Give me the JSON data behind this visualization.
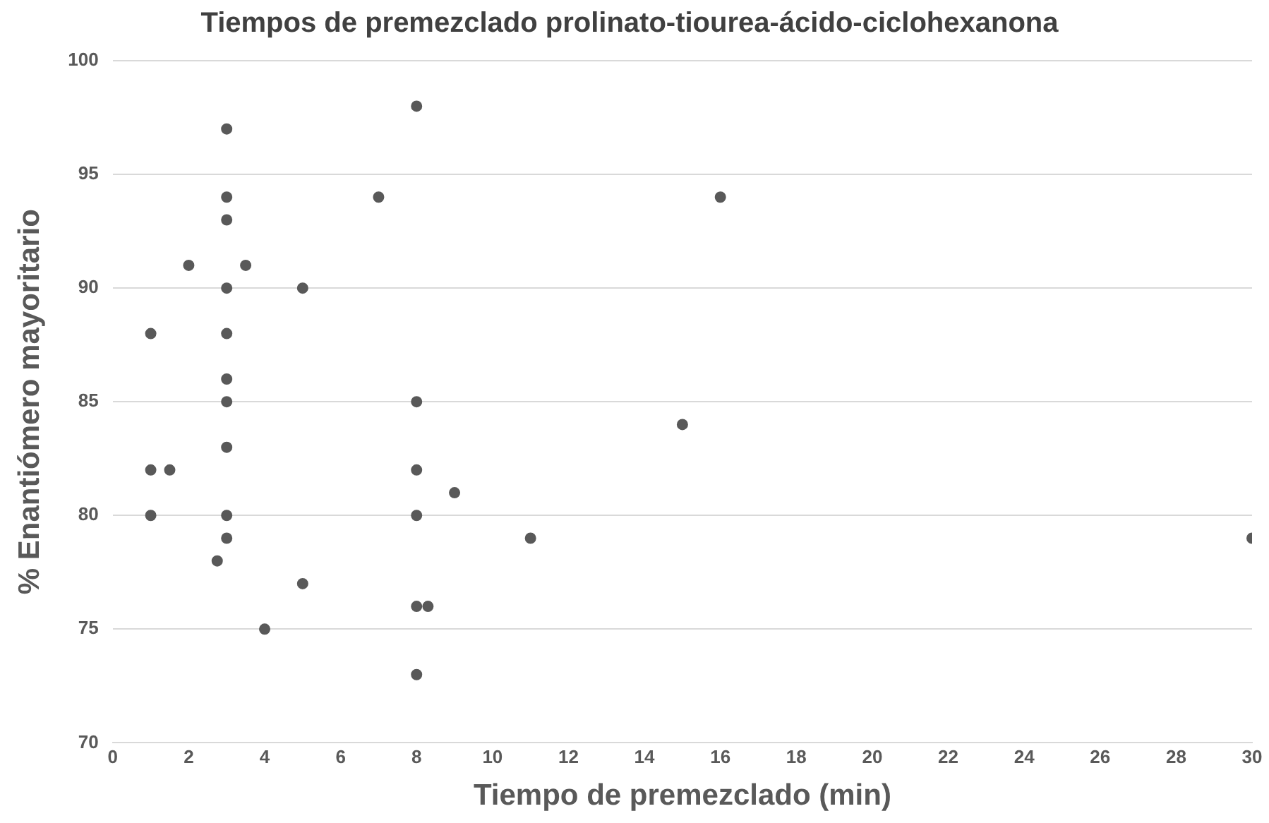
{
  "chart_data": {
    "type": "scatter",
    "title": "Tiempos de premezclado prolinato-tiourea-ácido-ciclohexanona",
    "xlabel": "Tiempo de premezclado (min)",
    "ylabel": "% Enantiómero mayoritario",
    "x": [
      1,
      1,
      1,
      1.5,
      2,
      3,
      3,
      3,
      3,
      3,
      3,
      3,
      3,
      3,
      3,
      2.75,
      3.5,
      4,
      5,
      5,
      7,
      8,
      8,
      8,
      8,
      8,
      8.3,
      8,
      9,
      11,
      15,
      16,
      30
    ],
    "values": [
      88,
      82,
      80,
      82,
      91,
      97,
      94,
      93,
      90,
      88,
      86,
      85,
      83,
      80,
      79,
      78,
      91,
      75,
      90,
      77,
      94,
      98,
      85,
      82,
      80,
      76,
      76,
      73,
      81,
      79,
      84,
      94,
      79
    ],
    "color": "#595959",
    "marker": "circle",
    "grid": "y",
    "legend": false,
    "xlim": [
      0,
      30
    ],
    "xticks": [
      0,
      2,
      4,
      6,
      8,
      10,
      12,
      14,
      16,
      18,
      20,
      22,
      24,
      26,
      28,
      30
    ],
    "ylim": [
      70,
      100
    ],
    "yticks": [
      70,
      75,
      80,
      85,
      90,
      95,
      100
    ]
  }
}
